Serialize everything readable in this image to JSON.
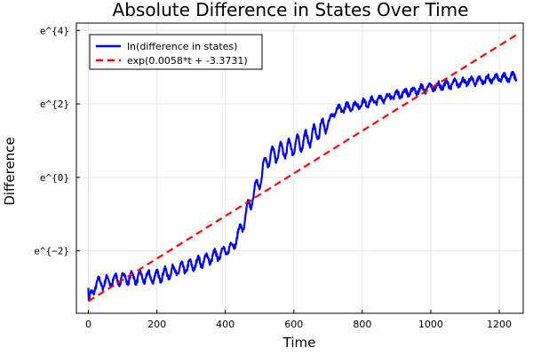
{
  "chart_data": {
    "type": "line",
    "title": "Absolute Difference in States Over Time",
    "xlabel": "Time",
    "ylabel": "Difference",
    "xlim": [
      -35,
      1270
    ],
    "ylim": [
      -3.7,
      4.2
    ],
    "x_ticks": [
      0,
      200,
      400,
      600,
      800,
      1000,
      1200
    ],
    "x_tick_labels": [
      "0",
      "200",
      "400",
      "600",
      "800",
      "1000",
      "1200"
    ],
    "y_ticks": [
      -2,
      0,
      2,
      4
    ],
    "y_tick_labels": [
      "e^{−2}",
      "e^{0}",
      "e^{2}",
      "e^{4}"
    ],
    "grid": true,
    "legend_position": "top-left",
    "series": [
      {
        "name": "ln(difference in states)",
        "color": "#0000ff",
        "style": "solid",
        "x_start": 0,
        "x_end": 1250,
        "trend_x": [
          0,
          100,
          200,
          300,
          380,
          420,
          450,
          480,
          500,
          520,
          560,
          600,
          650,
          700,
          720,
          750,
          800,
          900,
          1000,
          1100,
          1200,
          1250
        ],
        "trend_y": [
          -2.95,
          -2.75,
          -2.7,
          -2.4,
          -2.1,
          -1.9,
          -1.3,
          -0.5,
          -0.1,
          0.5,
          0.7,
          0.85,
          1.1,
          1.5,
          1.8,
          1.9,
          2.0,
          2.25,
          2.45,
          2.6,
          2.7,
          2.75
        ]
      },
      {
        "name": "exp(0.0058*t + -3.3731)",
        "color": "#ff0000",
        "style": "dashed",
        "slope": 0.0058,
        "intercept": -3.3731,
        "x_range": [
          0,
          1250
        ]
      }
    ]
  }
}
